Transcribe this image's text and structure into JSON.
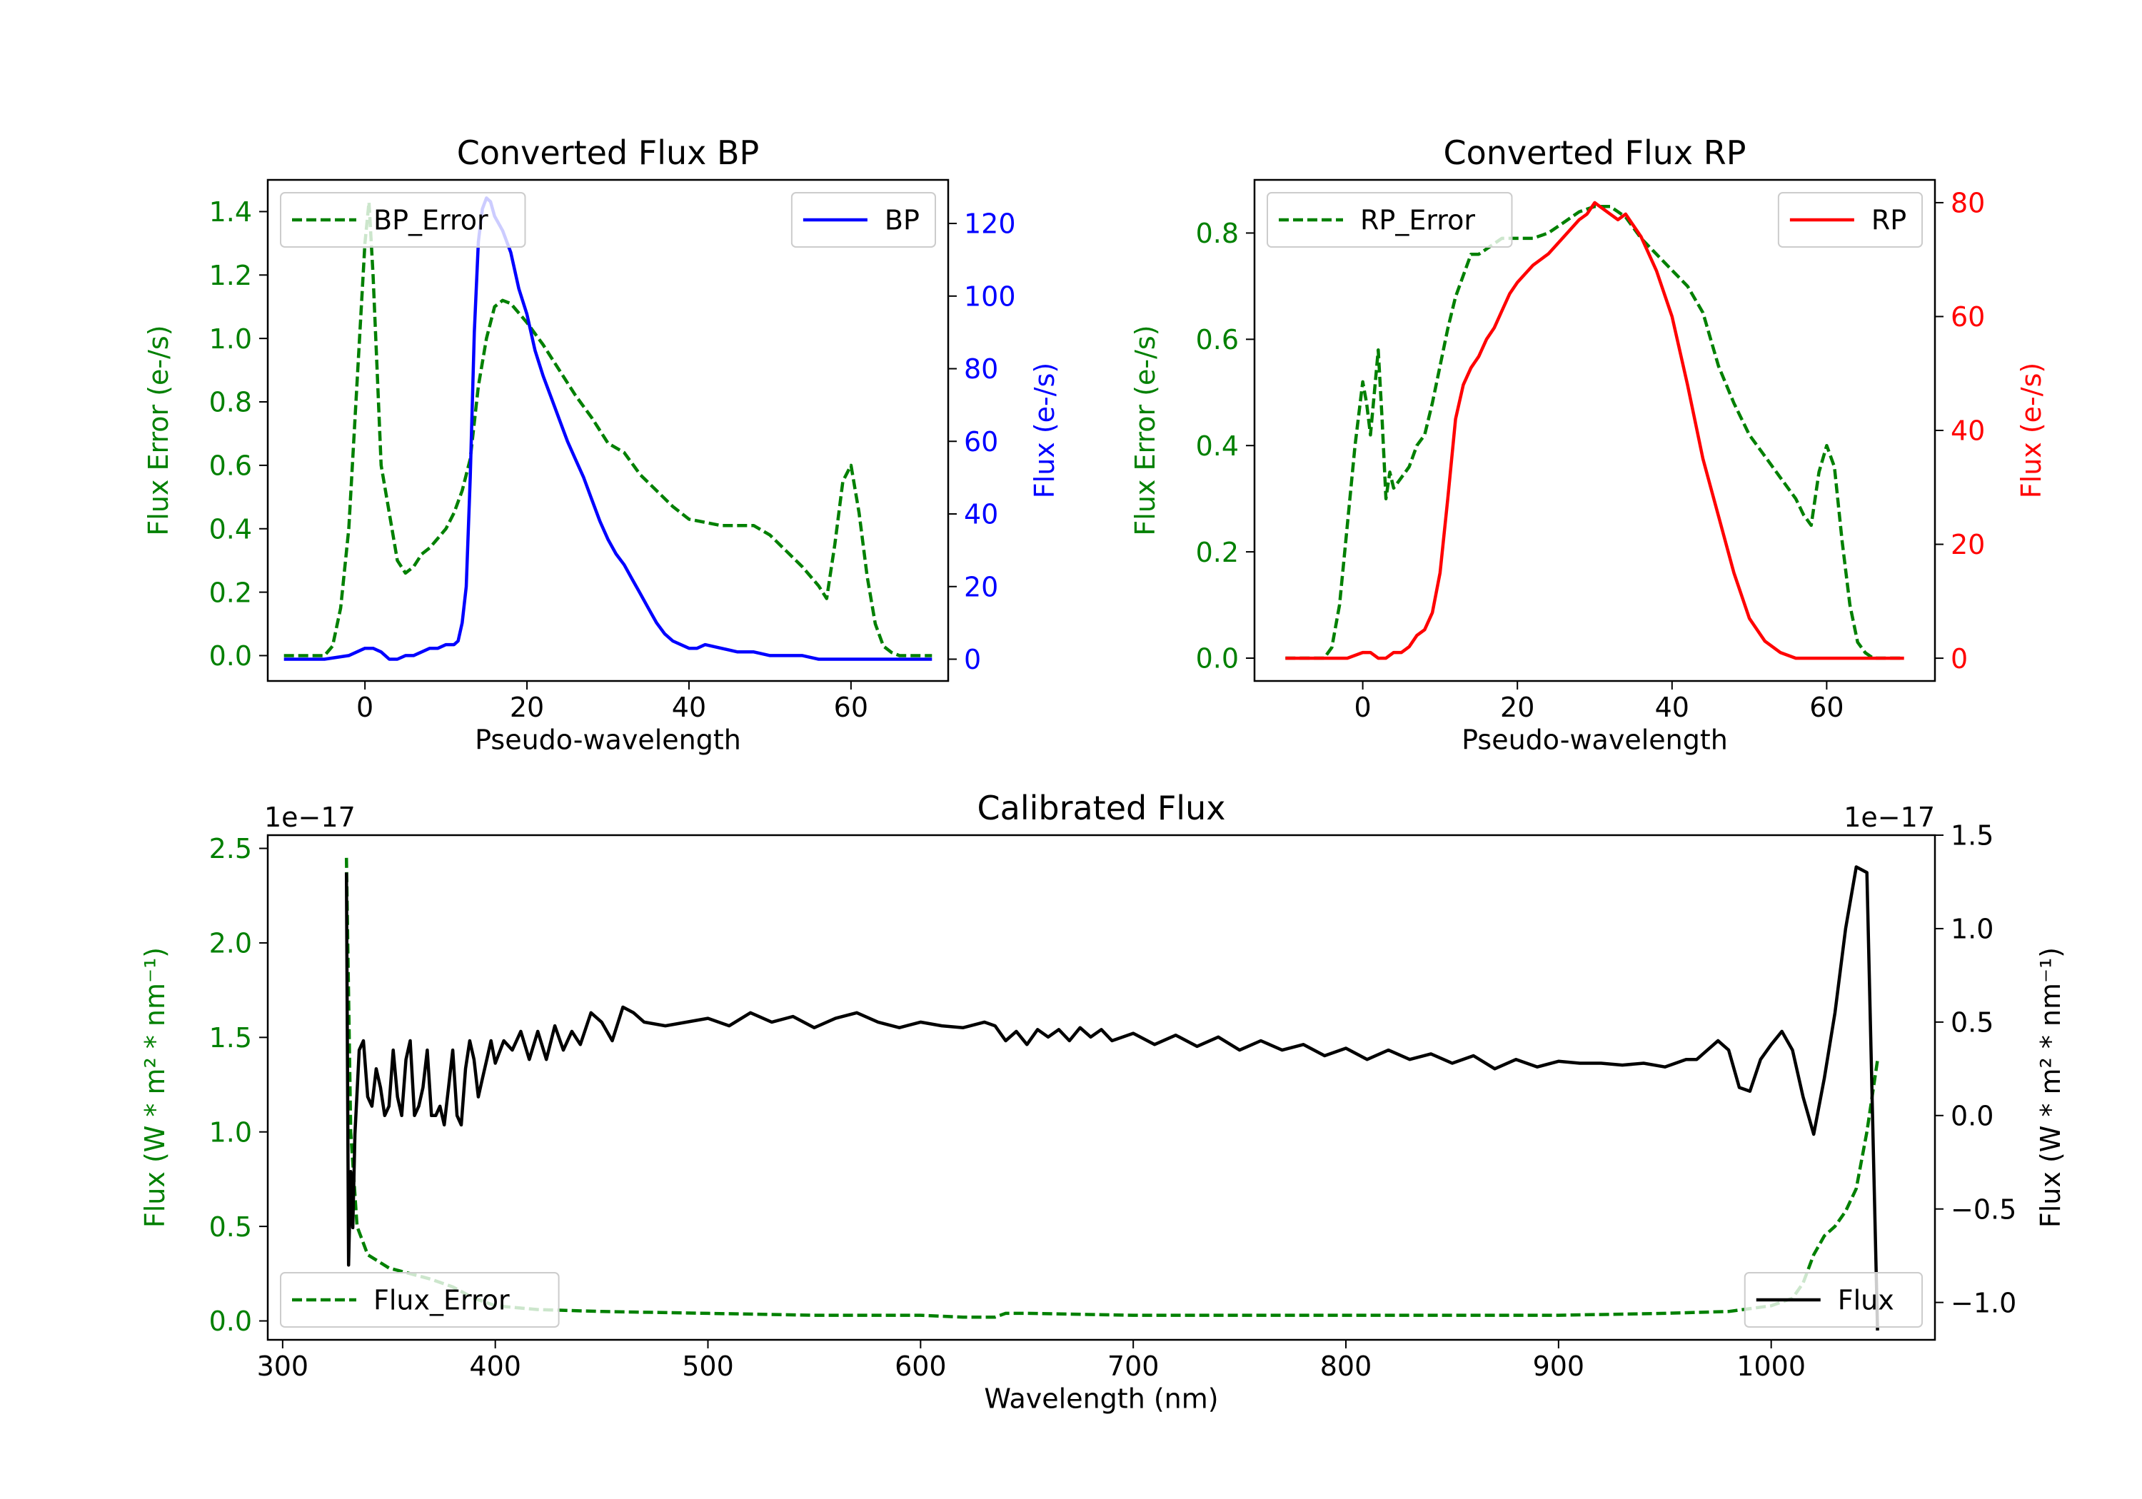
{
  "chart_data": [
    {
      "id": "bp",
      "type": "line",
      "title": "Converted Flux BP",
      "xlabel": "Pseudo-wavelength",
      "ylabel_left": "Flux Error (e-/s)",
      "ylabel_right": "Flux (e-/s)",
      "xlim": [
        -12,
        72
      ],
      "xticks": [
        0,
        20,
        40,
        60
      ],
      "ylim_left": [
        -0.08,
        1.5
      ],
      "yticks_left": [
        0.0,
        0.2,
        0.4,
        0.6,
        0.8,
        1.0,
        1.2,
        1.4
      ],
      "ytick_labels_left": [
        "0.0",
        "0.2",
        "0.4",
        "0.6",
        "0.8",
        "1.0",
        "1.2",
        "1.4"
      ],
      "ylim_right": [
        -6,
        132
      ],
      "yticks_right": [
        0,
        20,
        40,
        60,
        80,
        100,
        120
      ],
      "ytick_labels_right": [
        "0",
        "20",
        "40",
        "60",
        "80",
        "100",
        "120"
      ],
      "left_color": "#008000",
      "right_color": "#0000ff",
      "legend_left_pos": "upper-left",
      "legend_right_pos": "upper-right",
      "series_left": {
        "name": "BP_Error",
        "style": "dashed",
        "color": "#008000",
        "x": [
          -10,
          -5,
          -4,
          -3,
          -2,
          -1,
          0,
          0.5,
          1,
          1.5,
          2,
          3,
          4,
          5,
          6,
          7,
          8,
          9,
          10,
          11,
          12,
          13,
          14,
          15,
          16,
          17,
          18,
          19,
          20,
          22,
          24,
          26,
          28,
          30,
          32,
          34,
          36,
          38,
          40,
          42,
          44,
          46,
          48,
          50,
          52,
          54,
          56,
          57,
          58,
          59,
          60,
          61,
          62,
          63,
          64,
          65,
          66,
          70
        ],
        "y": [
          0.0,
          0.0,
          0.03,
          0.15,
          0.4,
          0.85,
          1.3,
          1.43,
          1.2,
          0.9,
          0.6,
          0.45,
          0.3,
          0.26,
          0.28,
          0.32,
          0.34,
          0.37,
          0.4,
          0.45,
          0.52,
          0.62,
          0.85,
          1.0,
          1.1,
          1.12,
          1.11,
          1.08,
          1.05,
          0.98,
          0.9,
          0.82,
          0.75,
          0.67,
          0.64,
          0.57,
          0.52,
          0.47,
          0.43,
          0.42,
          0.41,
          0.41,
          0.41,
          0.38,
          0.33,
          0.28,
          0.22,
          0.18,
          0.35,
          0.55,
          0.6,
          0.45,
          0.25,
          0.1,
          0.03,
          0.01,
          0.0,
          0.0
        ]
      },
      "series_right": {
        "name": "BP",
        "style": "solid",
        "color": "#0000ff",
        "x": [
          -10,
          -5,
          -2,
          0,
          1,
          2,
          3,
          4,
          5,
          6,
          7,
          8,
          9,
          10,
          11,
          11.5,
          12,
          12.5,
          13,
          13.5,
          14,
          14.5,
          15,
          15.5,
          16,
          17,
          18,
          19,
          20,
          21,
          22,
          23,
          24,
          25,
          26,
          27,
          28,
          29,
          30,
          31,
          32,
          33,
          34,
          35,
          36,
          37,
          38,
          39,
          40,
          41,
          42,
          44,
          46,
          48,
          50,
          52,
          54,
          56,
          58,
          60,
          62,
          64,
          66,
          68,
          70
        ],
        "y": [
          0,
          0,
          1,
          3,
          3,
          2,
          0,
          0,
          1,
          1,
          2,
          3,
          3,
          4,
          4,
          5,
          10,
          20,
          50,
          90,
          115,
          124,
          127,
          126,
          122,
          118,
          112,
          102,
          95,
          85,
          78,
          72,
          66,
          60,
          55,
          50,
          44,
          38,
          33,
          29,
          26,
          22,
          18,
          14,
          10,
          7,
          5,
          4,
          3,
          3,
          4,
          3,
          2,
          2,
          1,
          1,
          1,
          0,
          0,
          0,
          0,
          0,
          0,
          0,
          0
        ]
      }
    },
    {
      "id": "rp",
      "type": "line",
      "title": "Converted Flux RP",
      "xlabel": "Pseudo-wavelength",
      "ylabel_left": "Flux Error (e-/s)",
      "ylabel_right": "Flux (e-/s)",
      "xlim": [
        -14,
        74
      ],
      "xticks": [
        0,
        20,
        40,
        60
      ],
      "ylim_left": [
        -0.043,
        0.9
      ],
      "yticks_left": [
        0.0,
        0.2,
        0.4,
        0.6,
        0.8
      ],
      "ytick_labels_left": [
        "0.0",
        "0.2",
        "0.4",
        "0.6",
        "0.8"
      ],
      "ylim_right": [
        -4,
        84
      ],
      "yticks_right": [
        0,
        20,
        40,
        60,
        80
      ],
      "ytick_labels_right": [
        "0",
        "20",
        "40",
        "60",
        "80"
      ],
      "left_color": "#008000",
      "right_color": "#ff0000",
      "legend_left_pos": "upper-left",
      "legend_right_pos": "upper-right",
      "series_left": {
        "name": "RP_Error",
        "style": "dashed",
        "color": "#008000",
        "x": [
          -10,
          -5,
          -4,
          -3,
          -2,
          -1,
          0,
          0.5,
          1,
          1.5,
          2,
          2.5,
          3,
          3.5,
          4,
          5,
          6,
          7,
          8,
          9,
          10,
          11,
          12,
          13,
          14,
          15,
          16,
          17,
          18,
          19,
          20,
          22,
          24,
          26,
          28,
          30,
          32,
          34,
          36,
          38,
          40,
          42,
          44,
          46,
          48,
          50,
          52,
          54,
          56,
          57,
          58,
          59,
          60,
          61,
          62,
          63,
          64,
          65,
          66,
          70
        ],
        "y": [
          0.0,
          0.0,
          0.02,
          0.1,
          0.25,
          0.4,
          0.52,
          0.48,
          0.42,
          0.5,
          0.58,
          0.45,
          0.3,
          0.35,
          0.32,
          0.34,
          0.36,
          0.4,
          0.42,
          0.48,
          0.55,
          0.62,
          0.68,
          0.72,
          0.76,
          0.76,
          0.77,
          0.78,
          0.79,
          0.79,
          0.79,
          0.79,
          0.8,
          0.82,
          0.84,
          0.85,
          0.85,
          0.83,
          0.79,
          0.76,
          0.73,
          0.7,
          0.65,
          0.55,
          0.48,
          0.42,
          0.38,
          0.34,
          0.3,
          0.27,
          0.25,
          0.35,
          0.4,
          0.36,
          0.22,
          0.1,
          0.03,
          0.01,
          0.0,
          0.0
        ]
      },
      "series_right": {
        "name": "RP",
        "style": "solid",
        "color": "#ff0000",
        "x": [
          -10,
          -5,
          -2,
          0,
          1,
          2,
          3,
          4,
          5,
          6,
          7,
          8,
          9,
          10,
          11,
          12,
          13,
          14,
          15,
          16,
          17,
          18,
          19,
          20,
          22,
          24,
          26,
          28,
          29,
          30,
          31,
          32,
          33,
          34,
          35,
          36,
          38,
          40,
          42,
          44,
          46,
          48,
          50,
          52,
          54,
          56,
          58,
          60,
          62,
          64,
          66,
          70
        ],
        "y": [
          0,
          0,
          0,
          1,
          1,
          0,
          0,
          1,
          1,
          2,
          4,
          5,
          8,
          15,
          28,
          42,
          48,
          51,
          53,
          56,
          58,
          61,
          64,
          66,
          69,
          71,
          74,
          77,
          78,
          80,
          79,
          78,
          77,
          78,
          76,
          74,
          68,
          60,
          48,
          35,
          25,
          15,
          7,
          3,
          1,
          0,
          0,
          0,
          0,
          0,
          0,
          0
        ]
      }
    },
    {
      "id": "cal",
      "type": "line",
      "title": "Calibrated Flux",
      "xlabel": "Wavelength (nm)",
      "ylabel_left": "Flux (W * m² * nm⁻¹)",
      "ylabel_right": "Flux (W * m² * nm⁻¹)",
      "offset_left": "1e−17",
      "offset_right": "1e−17",
      "xlim": [
        293,
        1077
      ],
      "xticks": [
        300,
        400,
        500,
        600,
        700,
        800,
        900,
        1000
      ],
      "ylim_left": [
        -0.1,
        2.57
      ],
      "yticks_left": [
        0.0,
        0.5,
        1.0,
        1.5,
        2.0,
        2.5
      ],
      "ytick_labels_left": [
        "0.0",
        "0.5",
        "1.0",
        "1.5",
        "2.0",
        "2.5"
      ],
      "ylim_right": [
        -1.2,
        1.5
      ],
      "yticks_right": [
        -1.0,
        -0.5,
        0.0,
        0.5,
        1.0,
        1.5
      ],
      "ytick_labels_right": [
        "−1.0",
        "−0.5",
        "0.0",
        "0.5",
        "1.0",
        "1.5"
      ],
      "left_color": "#008000",
      "right_color": "#000000",
      "legend_left_pos": "lower-left",
      "legend_right_pos": "lower-right",
      "series_left": {
        "name": "Flux_Error",
        "style": "dashed",
        "color": "#008000",
        "x": [
          330,
          332,
          335,
          340,
          350,
          360,
          370,
          380,
          390,
          400,
          420,
          450,
          500,
          550,
          600,
          620,
          635,
          640,
          650,
          700,
          800,
          900,
          950,
          980,
          1000,
          1010,
          1015,
          1020,
          1025,
          1030,
          1035,
          1040,
          1045,
          1050
        ],
        "y": [
          2.45,
          1.0,
          0.5,
          0.35,
          0.28,
          0.25,
          0.22,
          0.18,
          0.12,
          0.08,
          0.06,
          0.05,
          0.04,
          0.03,
          0.03,
          0.02,
          0.02,
          0.04,
          0.04,
          0.03,
          0.03,
          0.03,
          0.04,
          0.05,
          0.08,
          0.12,
          0.2,
          0.35,
          0.45,
          0.5,
          0.58,
          0.7,
          1.0,
          1.38
        ]
      },
      "series_right": {
        "name": "Flux",
        "style": "solid",
        "color": "#000000",
        "x": [
          330,
          331,
          332,
          333,
          334,
          336,
          338,
          340,
          342,
          344,
          346,
          348,
          350,
          352,
          354,
          356,
          358,
          360,
          362,
          364,
          366,
          368,
          370,
          372,
          374,
          376,
          378,
          380,
          382,
          384,
          386,
          388,
          390,
          392,
          394,
          396,
          398,
          400,
          404,
          408,
          412,
          416,
          420,
          424,
          428,
          432,
          436,
          440,
          445,
          450,
          455,
          460,
          465,
          470,
          480,
          490,
          500,
          510,
          520,
          530,
          540,
          550,
          560,
          570,
          580,
          590,
          600,
          610,
          620,
          630,
          635,
          640,
          645,
          650,
          655,
          660,
          665,
          670,
          675,
          680,
          685,
          690,
          700,
          710,
          720,
          730,
          740,
          750,
          760,
          770,
          780,
          790,
          800,
          810,
          820,
          830,
          840,
          850,
          860,
          870,
          880,
          890,
          900,
          910,
          920,
          930,
          940,
          950,
          960,
          965,
          970,
          975,
          980,
          985,
          990,
          995,
          1000,
          1005,
          1010,
          1015,
          1020,
          1025,
          1030,
          1035,
          1040,
          1045,
          1050
        ],
        "y": [
          1.3,
          -0.8,
          -0.3,
          -0.6,
          -0.1,
          0.35,
          0.4,
          0.1,
          0.05,
          0.25,
          0.15,
          0.0,
          0.05,
          0.35,
          0.1,
          0.0,
          0.3,
          0.4,
          0.0,
          0.05,
          0.15,
          0.35,
          0.0,
          0.0,
          0.05,
          -0.05,
          0.15,
          0.35,
          0.0,
          -0.05,
          0.25,
          0.4,
          0.3,
          0.1,
          0.2,
          0.3,
          0.4,
          0.28,
          0.4,
          0.35,
          0.45,
          0.3,
          0.45,
          0.3,
          0.48,
          0.35,
          0.45,
          0.38,
          0.55,
          0.5,
          0.4,
          0.58,
          0.55,
          0.5,
          0.48,
          0.5,
          0.52,
          0.48,
          0.55,
          0.5,
          0.53,
          0.47,
          0.52,
          0.55,
          0.5,
          0.47,
          0.5,
          0.48,
          0.47,
          0.5,
          0.48,
          0.4,
          0.45,
          0.38,
          0.46,
          0.42,
          0.46,
          0.4,
          0.47,
          0.42,
          0.46,
          0.4,
          0.44,
          0.38,
          0.43,
          0.37,
          0.42,
          0.35,
          0.4,
          0.35,
          0.38,
          0.32,
          0.36,
          0.3,
          0.35,
          0.3,
          0.33,
          0.28,
          0.32,
          0.25,
          0.3,
          0.26,
          0.29,
          0.28,
          0.28,
          0.27,
          0.28,
          0.26,
          0.3,
          0.3,
          0.35,
          0.4,
          0.35,
          0.15,
          0.13,
          0.3,
          0.38,
          0.45,
          0.35,
          0.1,
          -0.1,
          0.2,
          0.55,
          1.0,
          1.33,
          1.3,
          -1.15
        ]
      }
    }
  ]
}
